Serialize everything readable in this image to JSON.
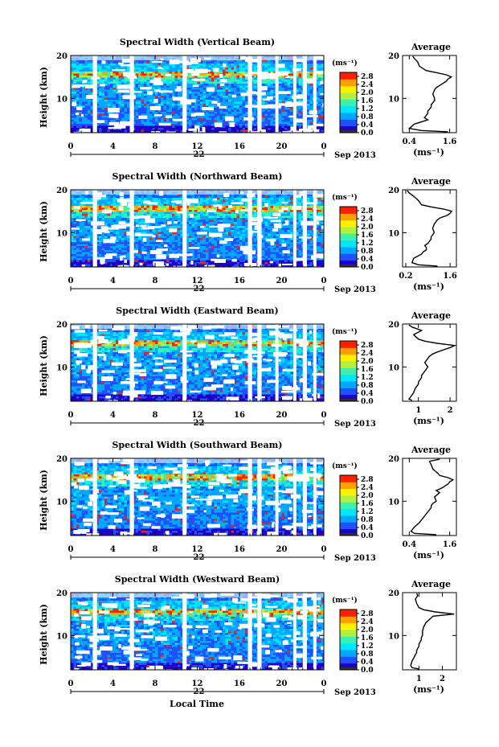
{
  "figure": {
    "x_axis_title": "Local Time",
    "date_label": "22",
    "month_label": "Sep 2013"
  },
  "chart_data": [
    {
      "type": "heatmap",
      "title": "Spectral Width (Vertical Beam)",
      "ylabel": "Height (km)",
      "xticks": [
        "0",
        "4",
        "8",
        "12",
        "16",
        "20",
        "0"
      ],
      "yticks": [
        "10",
        "20"
      ],
      "xlim": [
        0,
        24
      ],
      "ylim": [
        2,
        20
      ],
      "colorbar": {
        "unit": "(ms⁻¹)",
        "ticks": [
          "0.0",
          "0.4",
          "0.8",
          "1.2",
          "1.6",
          "2.0",
          "2.4",
          "2.8"
        ],
        "range": [
          0,
          3.0
        ]
      },
      "gaps_hours": [
        [
          2.1,
          2.5
        ],
        [
          5.6,
          6.0
        ],
        [
          10.6,
          11.0
        ],
        [
          16.8,
          17.2
        ],
        [
          17.7,
          18.1
        ],
        [
          19.4,
          19.7
        ],
        [
          21.1,
          21.4
        ],
        [
          22.0,
          22.4
        ],
        [
          23.0,
          23.3
        ]
      ],
      "colorscale": [
        "#1f00c8",
        "#2050ff",
        "#00a6ff",
        "#00e6ff",
        "#3cf0b0",
        "#b0f040",
        "#fff000",
        "#ffa000",
        "#ff2000"
      ]
    },
    {
      "type": "heatmap",
      "title": "Spectral Width (Northward Beam)",
      "ylabel": "Height (km)",
      "xticks": [
        "0",
        "4",
        "8",
        "12",
        "16",
        "20",
        "0"
      ],
      "yticks": [
        "10",
        "20"
      ],
      "xlim": [
        0,
        24
      ],
      "ylim": [
        2,
        20
      ],
      "colorbar": {
        "unit": "(ms⁻¹)",
        "ticks": [
          "0.0",
          "0.4",
          "0.8",
          "1.2",
          "1.6",
          "2.0",
          "2.4",
          "2.8"
        ],
        "range": [
          0,
          3.0
        ]
      },
      "gaps_hours": [
        [
          2.1,
          2.5
        ],
        [
          5.6,
          6.0
        ],
        [
          10.6,
          11.0
        ],
        [
          16.8,
          17.2
        ],
        [
          17.7,
          18.1
        ],
        [
          21.1,
          21.4
        ],
        [
          22.0,
          22.4
        ],
        [
          23.0,
          23.3
        ]
      ],
      "colorscale": [
        "#1f00c8",
        "#2050ff",
        "#00a6ff",
        "#00e6ff",
        "#3cf0b0",
        "#b0f040",
        "#fff000",
        "#ffa000",
        "#ff2000"
      ]
    },
    {
      "type": "heatmap",
      "title": "Spectral Width (Eastward Beam)",
      "ylabel": "Height (km)",
      "xticks": [
        "0",
        "4",
        "8",
        "12",
        "16",
        "20",
        "0"
      ],
      "yticks": [
        "10",
        "20"
      ],
      "xlim": [
        0,
        24
      ],
      "ylim": [
        2,
        20
      ],
      "colorbar": {
        "unit": "(ms⁻¹)",
        "ticks": [
          "0.0",
          "0.4",
          "0.8",
          "1.2",
          "1.6",
          "2.0",
          "2.4",
          "2.8"
        ],
        "range": [
          0,
          3.0
        ]
      },
      "gaps_hours": [
        [
          2.1,
          2.5
        ],
        [
          5.6,
          6.0
        ],
        [
          10.6,
          11.0
        ],
        [
          16.8,
          17.2
        ],
        [
          17.7,
          18.1
        ],
        [
          19.4,
          19.7
        ],
        [
          21.1,
          21.4
        ],
        [
          22.0,
          22.4
        ],
        [
          23.0,
          23.3
        ]
      ],
      "colorscale": [
        "#1f00c8",
        "#2050ff",
        "#00a6ff",
        "#00e6ff",
        "#3cf0b0",
        "#b0f040",
        "#fff000",
        "#ffa000",
        "#ff2000"
      ]
    },
    {
      "type": "heatmap",
      "title": "Spectral Width (Southward Beam)",
      "ylabel": "Height (km)",
      "xticks": [
        "0",
        "4",
        "8",
        "12",
        "16",
        "20",
        "0"
      ],
      "yticks": [
        "10",
        "20"
      ],
      "xlim": [
        0,
        24
      ],
      "ylim": [
        2,
        20
      ],
      "colorbar": {
        "unit": "(ms⁻¹)",
        "ticks": [
          "0.0",
          "0.4",
          "0.8",
          "1.2",
          "1.6",
          "2.0",
          "2.4",
          "2.8"
        ],
        "range": [
          0,
          3.0
        ]
      },
      "gaps_hours": [
        [
          2.1,
          2.5
        ],
        [
          5.6,
          6.0
        ],
        [
          10.6,
          11.0
        ],
        [
          16.8,
          17.2
        ],
        [
          17.7,
          18.1
        ],
        [
          19.4,
          19.7
        ],
        [
          21.1,
          21.4
        ],
        [
          22.0,
          22.4
        ],
        [
          23.0,
          23.3
        ]
      ],
      "colorscale": [
        "#1f00c8",
        "#2050ff",
        "#00a6ff",
        "#00e6ff",
        "#3cf0b0",
        "#b0f040",
        "#fff000",
        "#ffa000",
        "#ff2000"
      ]
    },
    {
      "type": "heatmap",
      "title": "Spectral Width (Westward Beam)",
      "ylabel": "Height (km)",
      "xticks": [
        "0",
        "4",
        "8",
        "12",
        "16",
        "20",
        "0"
      ],
      "yticks": [
        "10",
        "20"
      ],
      "xlim": [
        0,
        24
      ],
      "ylim": [
        2,
        20
      ],
      "colorbar": {
        "unit": "(ms⁻¹)",
        "ticks": [
          "0.0",
          "0.4",
          "0.8",
          "1.2",
          "1.6",
          "2.0",
          "2.4",
          "2.8"
        ],
        "range": [
          0,
          3.0
        ]
      },
      "gaps_hours": [
        [
          2.1,
          2.5
        ],
        [
          5.6,
          6.0
        ],
        [
          10.6,
          11.0
        ],
        [
          16.8,
          17.2
        ],
        [
          17.7,
          18.1
        ],
        [
          21.1,
          21.4
        ],
        [
          22.0,
          22.4
        ],
        [
          23.0,
          23.3
        ]
      ],
      "colorscale": [
        "#1f00c8",
        "#2050ff",
        "#00a6ff",
        "#00e6ff",
        "#3cf0b0",
        "#b0f040",
        "#fff000",
        "#ffa000",
        "#ff2000"
      ]
    },
    {
      "type": "line",
      "title": "Average",
      "xlabel": "(ms⁻¹)",
      "xticks": [
        "0.4",
        "1.6"
      ],
      "yticks": [
        "10",
        "20"
      ],
      "xlim": [
        0.2,
        1.8
      ],
      "ylim": [
        2,
        20
      ],
      "series": [
        {
          "x": [
            1.55,
            0.75,
            0.4,
            0.55,
            0.95,
            0.85,
            0.9,
            0.95,
            0.95,
            1.0,
            1.05,
            1.05,
            1.1,
            1.15,
            1.15,
            1.1,
            1.15,
            1.2,
            1.3,
            1.4,
            1.5,
            1.55,
            1.65,
            1.5,
            1.2,
            0.9,
            0.7,
            0.65,
            0.55,
            0.5
          ],
          "y": [
            2.2,
            2.5,
            3.0,
            4.0,
            5.0,
            5.5,
            6.0,
            6.5,
            7.0,
            7.5,
            8.0,
            8.5,
            9.0,
            9.5,
            10.0,
            11.0,
            12.0,
            12.5,
            13.0,
            13.5,
            14.0,
            14.5,
            15.0,
            15.5,
            16.0,
            16.5,
            17.5,
            18.5,
            19.3,
            19.8
          ]
        }
      ]
    },
    {
      "type": "line",
      "title": "Average",
      "xlabel": "(ms⁻¹)",
      "xticks": [
        "0.2",
        "1.6"
      ],
      "yticks": [
        "10",
        "20"
      ],
      "xlim": [
        0.1,
        1.8
      ],
      "ylim": [
        2,
        20
      ],
      "series": [
        {
          "x": [
            1.2,
            0.6,
            0.4,
            0.45,
            0.7,
            0.75,
            0.85,
            0.85,
            0.8,
            0.9,
            0.95,
            1.0,
            1.0,
            1.05,
            1.1,
            1.05,
            1.1,
            1.15,
            1.2,
            1.3,
            1.5,
            1.6,
            1.65,
            1.4,
            1.0,
            0.7,
            0.6,
            0.45,
            0.3,
            0.25
          ],
          "y": [
            2.2,
            2.5,
            3.0,
            4.0,
            5.0,
            5.5,
            6.0,
            6.5,
            7.0,
            7.5,
            8.0,
            8.5,
            9.0,
            9.5,
            10.0,
            11.0,
            12.0,
            12.5,
            13.0,
            13.5,
            14.0,
            14.5,
            15.0,
            15.5,
            16.0,
            16.5,
            17.5,
            18.5,
            19.3,
            19.8
          ]
        }
      ]
    },
    {
      "type": "line",
      "title": "Average",
      "xlabel": "(ms⁻¹)",
      "xticks": [
        "1",
        "2"
      ],
      "yticks": [
        "10",
        "20"
      ],
      "xlim": [
        0.5,
        2.2
      ],
      "ylim": [
        2,
        20
      ],
      "series": [
        {
          "x": [
            0.8,
            0.7,
            0.75,
            0.85,
            0.9,
            0.95,
            1.0,
            1.0,
            1.05,
            1.1,
            1.1,
            1.15,
            1.2,
            1.25,
            1.3,
            1.2,
            1.3,
            1.35,
            1.45,
            1.6,
            1.8,
            2.0,
            2.15,
            1.6,
            1.2,
            1.0,
            0.85,
            1.1,
            0.8,
            0.7
          ],
          "y": [
            2.2,
            2.5,
            3.0,
            4.0,
            5.0,
            5.5,
            6.0,
            6.5,
            7.0,
            7.5,
            8.0,
            8.5,
            9.0,
            9.5,
            10.0,
            11.0,
            12.0,
            12.5,
            13.0,
            13.5,
            14.0,
            14.5,
            15.0,
            15.5,
            16.0,
            16.5,
            17.5,
            18.5,
            19.3,
            19.8
          ]
        }
      ]
    },
    {
      "type": "line",
      "title": "Average",
      "xlabel": "(ms⁻¹)",
      "xticks": [
        "0.4",
        "1.6"
      ],
      "yticks": [
        "10",
        "20"
      ],
      "xlim": [
        0.2,
        1.8
      ],
      "ylim": [
        2,
        20
      ],
      "series": [
        {
          "x": [
            1.2,
            0.55,
            0.45,
            0.55,
            0.7,
            0.75,
            0.8,
            0.85,
            0.9,
            0.95,
            1.0,
            1.05,
            1.05,
            1.1,
            1.2,
            1.15,
            1.3,
            1.2,
            1.35,
            1.45,
            1.55,
            1.6,
            1.7,
            1.55,
            1.3,
            1.25,
            1.1,
            1.05,
            1.0,
            1.3
          ],
          "y": [
            2.2,
            2.5,
            3.0,
            4.0,
            5.0,
            5.5,
            6.0,
            6.5,
            7.0,
            7.5,
            8.0,
            8.5,
            9.0,
            9.5,
            10.0,
            11.0,
            12.0,
            12.5,
            13.0,
            13.5,
            14.0,
            14.5,
            15.0,
            15.5,
            16.0,
            16.5,
            17.5,
            18.5,
            19.3,
            19.8
          ]
        }
      ]
    },
    {
      "type": "line",
      "title": "Average",
      "xlabel": "(ms⁻¹)",
      "xticks": [
        "1",
        "2"
      ],
      "yticks": [
        "10",
        "20"
      ],
      "xlim": [
        0.3,
        2.6
      ],
      "ylim": [
        2,
        20
      ],
      "series": [
        {
          "x": [
            1.0,
            0.7,
            0.65,
            0.7,
            0.8,
            0.85,
            0.9,
            0.9,
            0.95,
            1.0,
            1.0,
            1.05,
            1.1,
            1.1,
            1.15,
            1.15,
            1.2,
            1.25,
            1.3,
            1.4,
            1.5,
            1.6,
            2.5,
            1.7,
            1.2,
            1.0,
            0.9,
            0.85,
            0.95,
            0.9
          ],
          "y": [
            2.2,
            2.5,
            3.0,
            4.0,
            5.0,
            5.5,
            6.0,
            6.5,
            7.0,
            7.5,
            8.0,
            8.5,
            9.0,
            9.5,
            10.0,
            11.0,
            12.0,
            12.5,
            13.0,
            13.5,
            14.0,
            14.5,
            15.0,
            15.5,
            16.0,
            16.5,
            17.5,
            18.5,
            19.3,
            19.8
          ]
        }
      ]
    }
  ]
}
